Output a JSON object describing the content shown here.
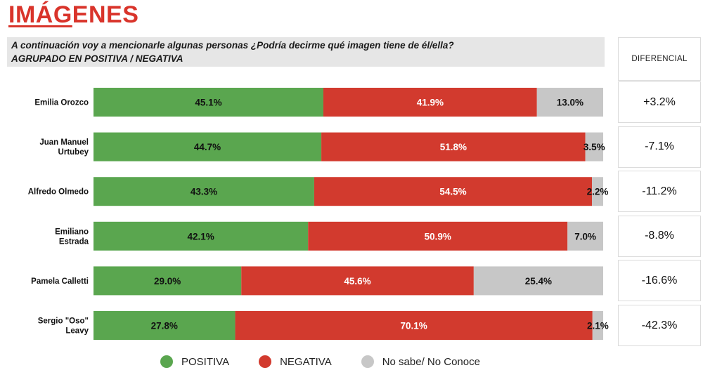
{
  "title": {
    "part1": "IMÁG",
    "part2": "ENES"
  },
  "question": {
    "line1": "A continuación voy a mencionarle algunas personas  ¿Podría decirme qué imagen tiene de él/ella?",
    "line2": "AGRUPADO EN POSITIVA / NEGATIVA"
  },
  "diff_header": "DIFERENCIAL",
  "colors": {
    "positiva": "#5aa64f",
    "negativa": "#d23a2e",
    "nosabe": "#c7c7c7"
  },
  "chart_data": {
    "type": "bar",
    "orientation": "horizontal",
    "stacked": true,
    "title": "IMÁGENES",
    "categories": [
      [
        "Emilia Orozco"
      ],
      [
        "Juan Manuel",
        "Urtubey"
      ],
      [
        "Alfredo Olmedo"
      ],
      [
        "Emiliano",
        "Estrada"
      ],
      [
        "Pamela Calletti"
      ],
      [
        "Sergio \"Oso\"",
        "Leavy"
      ]
    ],
    "series": [
      {
        "name": "POSITIVA",
        "color_key": "positiva",
        "values": [
          45.1,
          44.7,
          43.3,
          42.1,
          29.0,
          27.8
        ],
        "labels": [
          "45.1%",
          "44.7%",
          "43.3%",
          "42.1%",
          "29.0%",
          "27.8%"
        ]
      },
      {
        "name": "NEGATIVA",
        "color_key": "negativa",
        "values": [
          41.9,
          51.8,
          54.5,
          50.9,
          45.6,
          70.1
        ],
        "labels": [
          "41.9%",
          "51.8%",
          "54.5%",
          "50.9%",
          "45.6%",
          "70.1%"
        ]
      },
      {
        "name": "No sabe/ No Conoce",
        "color_key": "nosabe",
        "values": [
          13.0,
          3.5,
          2.2,
          7.0,
          25.4,
          2.1
        ],
        "labels": [
          "13.0%",
          "3.5%",
          "2.2%",
          "7.0%",
          "25.4%",
          "2.1%"
        ]
      }
    ],
    "diferencial": [
      "+3.2%",
      "-7.1%",
      "-11.2%",
      "-8.8%",
      "-16.6%",
      "-42.3%"
    ],
    "xlim": [
      0,
      100
    ],
    "legend_position": "bottom"
  }
}
